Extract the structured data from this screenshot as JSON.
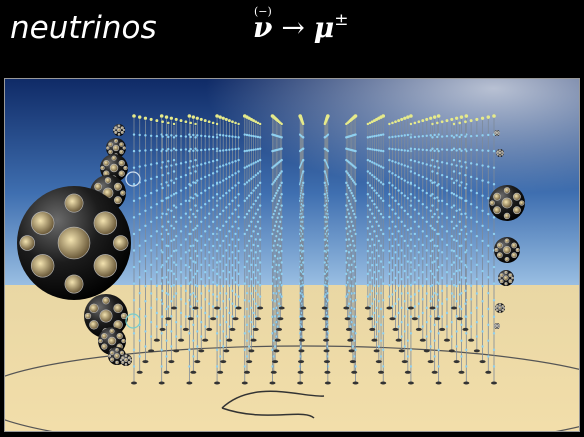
{
  "header": {
    "title": "neutrinos",
    "formula": {
      "accent": "(−)",
      "particle": "ν",
      "arrow": "→",
      "product": "μ",
      "charge": "±"
    }
  }
}
